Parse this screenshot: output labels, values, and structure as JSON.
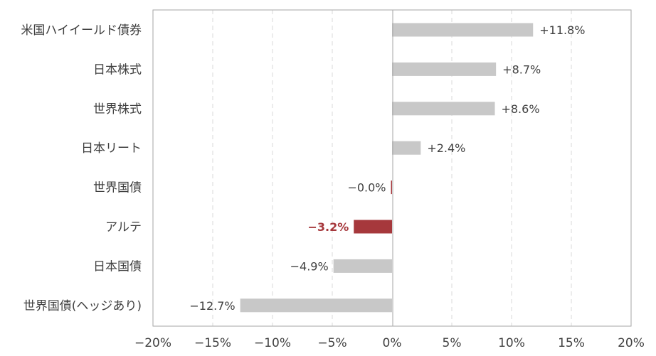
{
  "chart_data": {
    "type": "bar",
    "orientation": "horizontal",
    "title": "",
    "xlabel": "",
    "ylabel": "",
    "categories": [
      "米国ハイイールド債券",
      "日本株式",
      "世界株式",
      "日本リート",
      "世界国債",
      "アルテ",
      "日本国債",
      "世界国債(ヘッジあり)"
    ],
    "values": [
      11.8,
      8.7,
      8.6,
      2.4,
      -0.02,
      -3.2,
      -4.9,
      -12.7
    ],
    "data_labels": [
      "+11.8%",
      "+8.7%",
      "+8.6%",
      "+2.4%",
      "−0.0%",
      "−3.2%",
      "−4.9%",
      "−12.7%"
    ],
    "highlight": [
      "",
      "",
      "",
      "",
      "negative",
      "negative",
      "",
      ""
    ],
    "xlim": [
      -20,
      20
    ],
    "ticks": [
      -20,
      -15,
      -10,
      -5,
      0,
      5,
      10,
      15,
      20
    ],
    "tick_labels": [
      "−20%",
      "−15%",
      "−10%",
      "−5%",
      "0%",
      "5%",
      "10%",
      "15%",
      "20%"
    ],
    "grid": "vertical-dashed",
    "legend": "none",
    "colors": {
      "bar": "#c8c8c8",
      "highlight": "#a6383c",
      "axis": "#a6a6a6",
      "grid": "#d9d9d9",
      "text": "#404040"
    }
  }
}
